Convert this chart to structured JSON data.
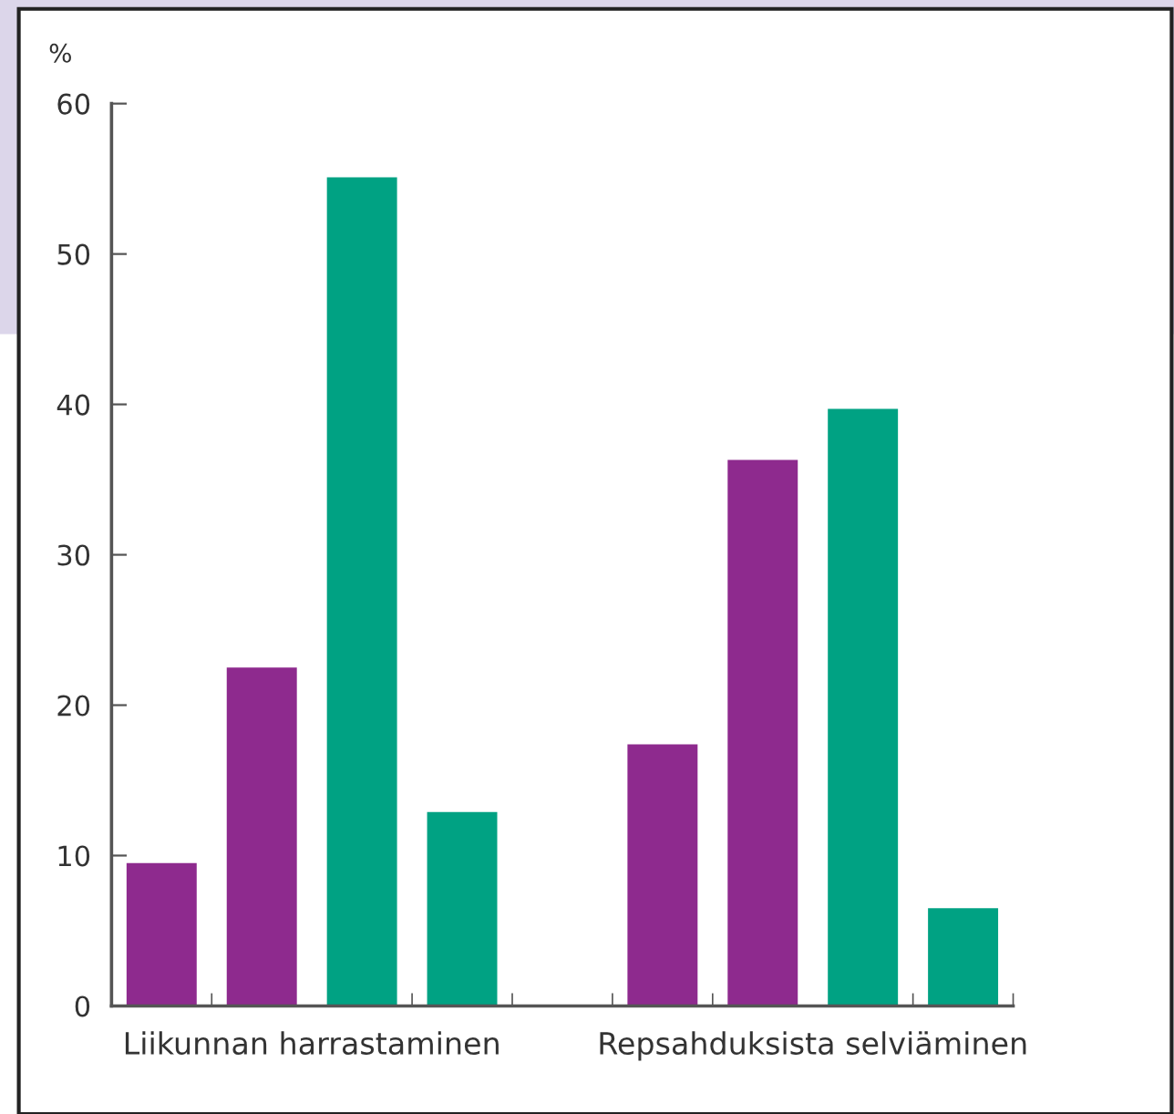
{
  "chart_data": {
    "type": "bar",
    "ylabel": "%",
    "categories": [
      "Liikunnan harrastaminen",
      "Repsahduksista selviäminen"
    ],
    "series": [
      {
        "color": "#8e2a8e",
        "values": [
          9.5,
          17.4
        ]
      },
      {
        "color": "#8e2a8e",
        "values": [
          22.5,
          36.3
        ]
      },
      {
        "color": "#00a283",
        "values": [
          55.1,
          39.7
        ]
      },
      {
        "color": "#00a283",
        "values": [
          12.9,
          6.5
        ]
      }
    ],
    "ylim": [
      0,
      60
    ],
    "yticks": [
      0,
      10,
      20,
      30,
      40,
      50,
      60
    ],
    "grid": false,
    "legend": false
  }
}
